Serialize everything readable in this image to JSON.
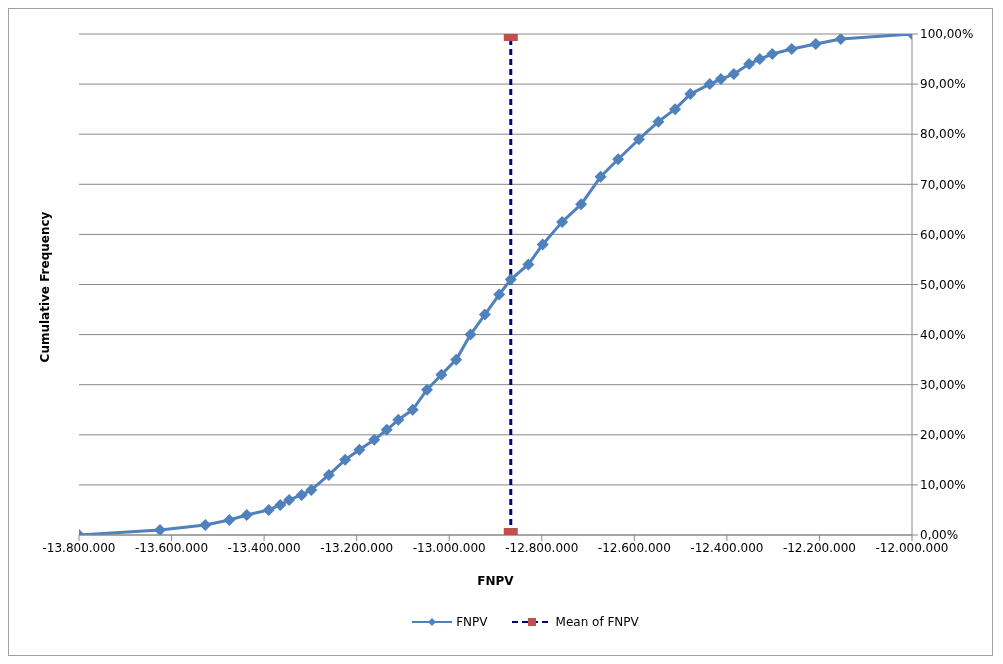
{
  "chart_data": {
    "type": "line",
    "xlabel": "FNPV",
    "ylabel": "Cumulative Frequency",
    "xlim": [
      -13800000,
      -12000000
    ],
    "xticks": [
      {
        "value": -13800000,
        "label": "-13.800.000"
      },
      {
        "value": -13600000,
        "label": "-13.600.000"
      },
      {
        "value": -13400000,
        "label": "-13.400.000"
      },
      {
        "value": -13200000,
        "label": "-13.200.000"
      },
      {
        "value": -13000000,
        "label": "-13.000.000"
      },
      {
        "value": -12800000,
        "label": "-12.800.000"
      },
      {
        "value": -12600000,
        "label": "-12.600.000"
      },
      {
        "value": -12400000,
        "label": "-12.400.000"
      },
      {
        "value": -12200000,
        "label": "-12.200.000"
      },
      {
        "value": -12000000,
        "label": "-12.000.000"
      }
    ],
    "ylim": [
      0,
      100
    ],
    "yticks": [
      {
        "value": 0,
        "label": "0,00%"
      },
      {
        "value": 10,
        "label": "10,00%"
      },
      {
        "value": 20,
        "label": "20,00%"
      },
      {
        "value": 30,
        "label": "30,00%"
      },
      {
        "value": 40,
        "label": "40,00%"
      },
      {
        "value": 50,
        "label": "50,00%"
      },
      {
        "value": 60,
        "label": "60,00%"
      },
      {
        "value": 70,
        "label": "70,00%"
      },
      {
        "value": 80,
        "label": "80,00%"
      },
      {
        "value": 90,
        "label": "90,00%"
      },
      {
        "value": 100,
        "label": "100,00%"
      }
    ],
    "grid": "y",
    "legend": "bottom",
    "series": [
      {
        "name": "FNPV",
        "color": "#4f81bd",
        "marker": "diamond",
        "line_style": "solid",
        "x": [
          -13800000,
          -13625000,
          -13527000,
          -13475000,
          -13437500,
          -13390000,
          -13365000,
          -13346000,
          -13319000,
          -13298000,
          -13260000,
          -13225000,
          -13194000,
          -13162000,
          -13135000,
          -13110000,
          -13079000,
          -13048000,
          -13017000,
          -12985000,
          -12954000,
          -12923000,
          -12892000,
          -12867000,
          -12829000,
          -12798000,
          -12756000,
          -12715000,
          -12673000,
          -12635000,
          -12590000,
          -12548000,
          -12512000,
          -12479000,
          -12437000,
          -12413000,
          -12385000,
          -12352000,
          -12329000,
          -12302000,
          -12260000,
          -12208000,
          -12154000,
          -12000000
        ],
        "values": [
          0,
          1,
          2,
          3,
          4,
          5,
          6,
          7,
          8,
          9,
          12,
          15,
          17,
          19,
          21,
          23,
          25,
          29,
          32,
          35,
          40,
          44,
          48,
          51,
          54,
          58,
          62.5,
          66,
          71.5,
          75,
          79,
          82.5,
          85,
          88,
          90,
          91,
          92,
          94,
          95,
          96,
          97,
          98,
          99,
          100
        ]
      },
      {
        "name": "Mean of FNPV",
        "color": "#000080",
        "colors": [
          "#c0504d",
          "#c0504d"
        ],
        "marker": "square",
        "line_style": "dashed",
        "x": [
          -12867000,
          -12867000
        ],
        "values": [
          0,
          100
        ]
      }
    ]
  }
}
